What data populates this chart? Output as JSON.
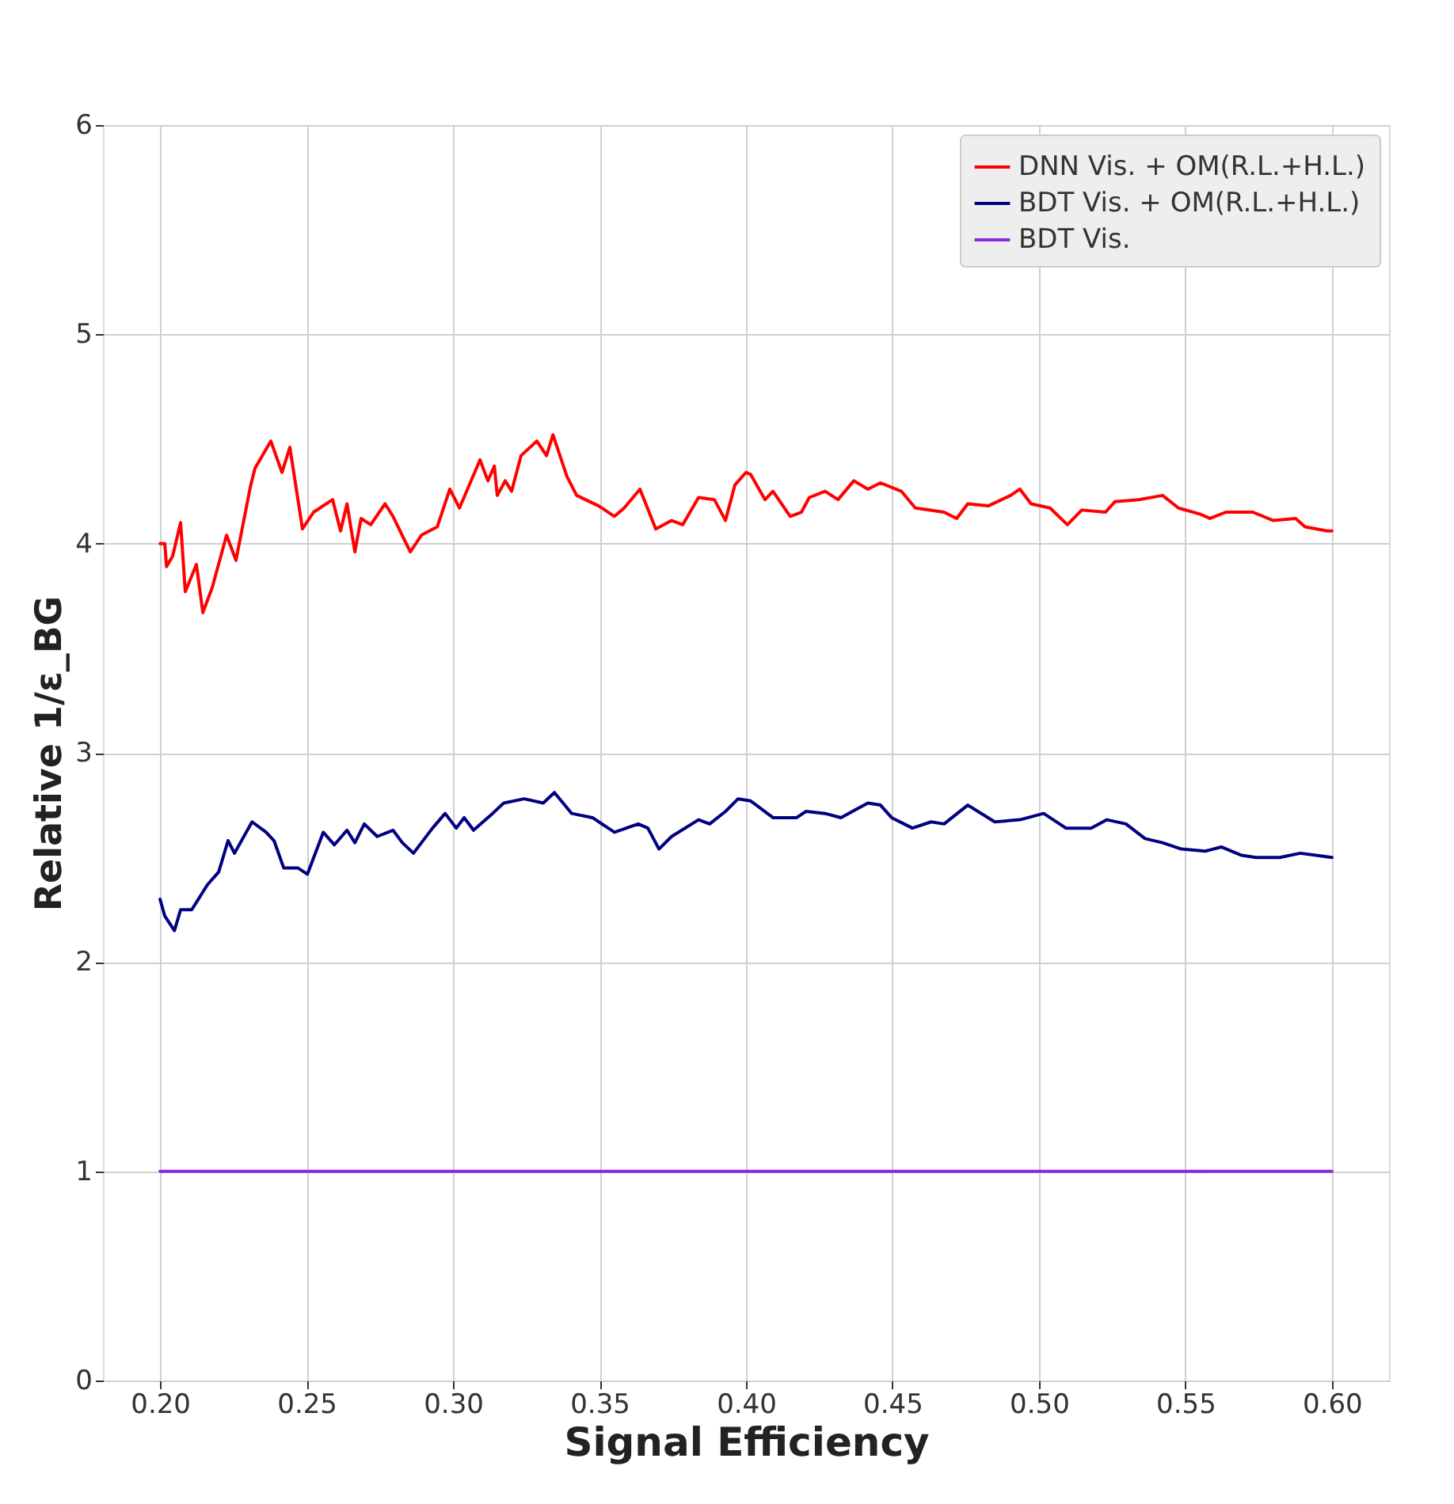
{
  "chart_data": {
    "type": "line",
    "xlabel": "Signal Efficiency",
    "ylabel": "Relative 1/ε_BG",
    "xlim": [
      0.1805,
      0.6195
    ],
    "ylim": [
      0,
      6
    ],
    "xticks": [
      {
        "value": 0.2,
        "label": "0.20"
      },
      {
        "value": 0.25,
        "label": "0.25"
      },
      {
        "value": 0.3,
        "label": "0.30"
      },
      {
        "value": 0.35,
        "label": "0.35"
      },
      {
        "value": 0.4,
        "label": "0.40"
      },
      {
        "value": 0.45,
        "label": "0.45"
      },
      {
        "value": 0.5,
        "label": "0.50"
      },
      {
        "value": 0.55,
        "label": "0.55"
      },
      {
        "value": 0.6,
        "label": "0.60"
      }
    ],
    "yticks": [
      0,
      1,
      2,
      3,
      4,
      5,
      6
    ],
    "grid": true,
    "legend": "top right",
    "marker": "none",
    "line_style": "solid",
    "series": [
      {
        "name": "DNN Vis. + OM(R.L.+H.L.)",
        "color": "#ff0000",
        "x": [
          0.2,
          0.2016,
          0.2022,
          0.2043,
          0.207,
          0.2086,
          0.2124,
          0.2146,
          0.2178,
          0.2227,
          0.2259,
          0.2308,
          0.2324,
          0.2378,
          0.2416,
          0.2443,
          0.2486,
          0.2524,
          0.2589,
          0.2616,
          0.2638,
          0.2665,
          0.2686,
          0.2719,
          0.2768,
          0.2795,
          0.2854,
          0.2892,
          0.2946,
          0.2989,
          0.3022,
          0.3092,
          0.3119,
          0.3141,
          0.3151,
          0.3178,
          0.32,
          0.3232,
          0.3286,
          0.3319,
          0.3341,
          0.3389,
          0.3422,
          0.3497,
          0.3551,
          0.3584,
          0.3638,
          0.3692,
          0.3746,
          0.3784,
          0.3838,
          0.3892,
          0.393,
          0.3962,
          0.4,
          0.4016,
          0.4065,
          0.4092,
          0.4151,
          0.4189,
          0.4216,
          0.427,
          0.4314,
          0.4368,
          0.4416,
          0.4459,
          0.453,
          0.4578,
          0.4676,
          0.4719,
          0.4757,
          0.4827,
          0.4903,
          0.4935,
          0.4973,
          0.5038,
          0.5097,
          0.5146,
          0.5227,
          0.5259,
          0.5341,
          0.5422,
          0.5476,
          0.5551,
          0.5584,
          0.5638,
          0.573,
          0.58,
          0.5876,
          0.5908,
          0.5984,
          0.6
        ],
        "values": [
          4.0,
          4.0,
          3.89,
          3.94,
          4.1,
          3.77,
          3.9,
          3.67,
          3.79,
          4.04,
          3.92,
          4.27,
          4.36,
          4.49,
          4.34,
          4.46,
          4.07,
          4.15,
          4.21,
          4.06,
          4.19,
          3.96,
          4.12,
          4.09,
          4.19,
          4.13,
          3.96,
          4.04,
          4.08,
          4.26,
          4.17,
          4.4,
          4.3,
          4.37,
          4.23,
          4.3,
          4.25,
          4.42,
          4.49,
          4.42,
          4.52,
          4.32,
          4.23,
          4.18,
          4.13,
          4.17,
          4.26,
          4.07,
          4.11,
          4.09,
          4.22,
          4.21,
          4.11,
          4.28,
          4.34,
          4.33,
          4.21,
          4.25,
          4.13,
          4.15,
          4.22,
          4.25,
          4.21,
          4.3,
          4.26,
          4.29,
          4.25,
          4.17,
          4.15,
          4.12,
          4.19,
          4.18,
          4.23,
          4.26,
          4.19,
          4.17,
          4.09,
          4.16,
          4.15,
          4.2,
          4.21,
          4.23,
          4.17,
          4.14,
          4.12,
          4.15,
          4.15,
          4.11,
          4.12,
          4.08,
          4.06,
          4.06
        ]
      },
      {
        "name": "BDT Vis. + OM(R.L.+H.L.)",
        "color": "#000080",
        "x": [
          0.2,
          0.2016,
          0.2049,
          0.207,
          0.2108,
          0.2162,
          0.22,
          0.2232,
          0.2254,
          0.2314,
          0.2362,
          0.2389,
          0.2422,
          0.247,
          0.2503,
          0.2557,
          0.2595,
          0.2638,
          0.2665,
          0.2697,
          0.2741,
          0.2795,
          0.2827,
          0.2865,
          0.293,
          0.2973,
          0.3011,
          0.3038,
          0.307,
          0.3135,
          0.3173,
          0.3243,
          0.3308,
          0.3346,
          0.3405,
          0.3476,
          0.3551,
          0.3632,
          0.3665,
          0.3703,
          0.3746,
          0.3838,
          0.3876,
          0.393,
          0.3973,
          0.4016,
          0.4092,
          0.4173,
          0.4205,
          0.427,
          0.4324,
          0.4416,
          0.4459,
          0.4497,
          0.4568,
          0.4632,
          0.4676,
          0.4757,
          0.4849,
          0.4935,
          0.5016,
          0.5092,
          0.5178,
          0.5232,
          0.5297,
          0.5362,
          0.5422,
          0.5486,
          0.5568,
          0.5622,
          0.5692,
          0.5741,
          0.5822,
          0.5892,
          0.5946,
          0.6
        ],
        "values": [
          2.3,
          2.22,
          2.15,
          2.25,
          2.25,
          2.37,
          2.43,
          2.58,
          2.52,
          2.67,
          2.62,
          2.58,
          2.45,
          2.45,
          2.42,
          2.62,
          2.56,
          2.63,
          2.57,
          2.66,
          2.6,
          2.63,
          2.57,
          2.52,
          2.64,
          2.71,
          2.64,
          2.69,
          2.63,
          2.71,
          2.76,
          2.78,
          2.76,
          2.81,
          2.71,
          2.69,
          2.62,
          2.66,
          2.64,
          2.54,
          2.6,
          2.68,
          2.66,
          2.72,
          2.78,
          2.77,
          2.69,
          2.69,
          2.72,
          2.71,
          2.69,
          2.76,
          2.75,
          2.69,
          2.64,
          2.67,
          2.66,
          2.75,
          2.67,
          2.68,
          2.71,
          2.64,
          2.64,
          2.68,
          2.66,
          2.59,
          2.57,
          2.54,
          2.53,
          2.55,
          2.51,
          2.5,
          2.5,
          2.52,
          2.51,
          2.5
        ]
      },
      {
        "name": "BDT Vis.",
        "color": "#8a2be2",
        "x": [
          0.2,
          0.6
        ],
        "values": [
          1,
          1
        ]
      }
    ]
  }
}
